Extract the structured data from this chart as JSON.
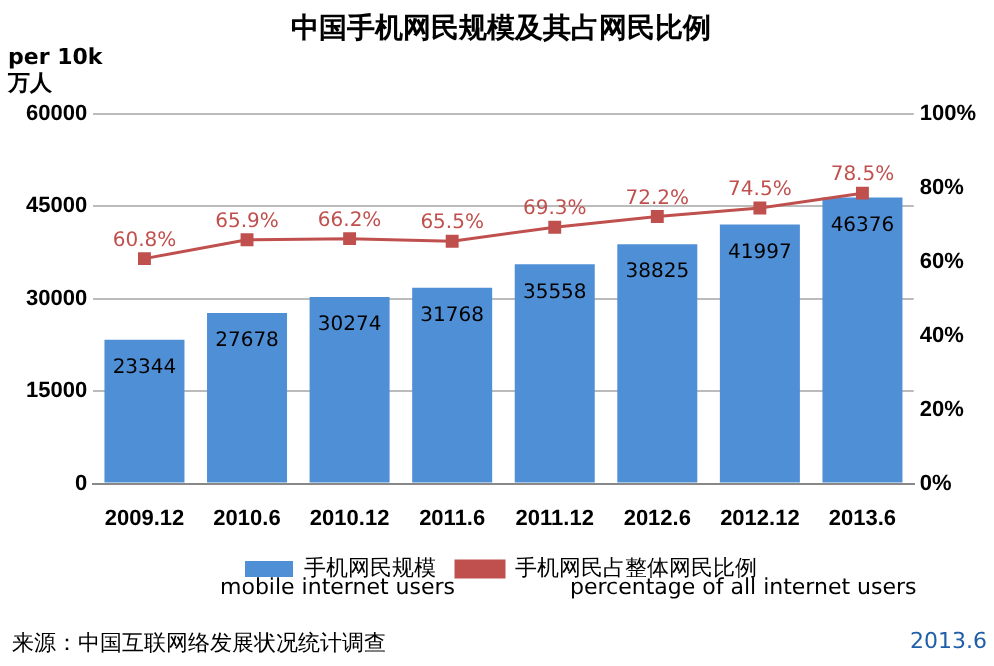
{
  "chart_data": {
    "type": "bar",
    "title": "中国手机网民规模及其占网民比例",
    "ylabel": "per 10k\n万人",
    "categories": [
      "2009.12",
      "2010.6",
      "2010.12",
      "2011.6",
      "2011.12",
      "2012.6",
      "2012.12",
      "2013.6"
    ],
    "series": [
      {
        "name": "手机网民规模",
        "color": "#4f8fd6",
        "values": [
          23344,
          27678,
          30274,
          31768,
          35558,
          38825,
          41997,
          46376
        ],
        "value_labels": [
          "23344",
          "27678",
          "30274",
          "31768",
          "35558",
          "38825",
          "41997",
          "46376"
        ]
      },
      {
        "name": "手机网民占整体网民比例",
        "type": "line",
        "axis": "y2",
        "color": "#c0504d",
        "marker": "square",
        "values": [
          60.8,
          65.9,
          66.2,
          65.5,
          69.3,
          72.2,
          74.5,
          78.5
        ],
        "value_labels": [
          "60.8%",
          "65.9%",
          "66.2%",
          "65.5%",
          "69.3%",
          "72.2%",
          "74.5%",
          "78.5%"
        ]
      }
    ],
    "ylim": [
      0,
      60000
    ],
    "yticks": [
      0,
      15000,
      30000,
      45000,
      60000
    ],
    "y2lim": [
      0,
      100
    ],
    "y2ticks": [
      {
        "value": 0,
        "label": "0%"
      },
      {
        "value": 20,
        "label": "20%"
      },
      {
        "value": 40,
        "label": "40%"
      },
      {
        "value": 60,
        "label": "60%"
      },
      {
        "value": 80,
        "label": "80%"
      },
      {
        "value": 100,
        "label": "100%"
      }
    ],
    "grid": "y",
    "legend": "bottom",
    "annotations": [
      "mobile internet users",
      "percentage of all internet users",
      "来源：中国互联网络发展状况统计调查",
      "2013.6"
    ]
  }
}
